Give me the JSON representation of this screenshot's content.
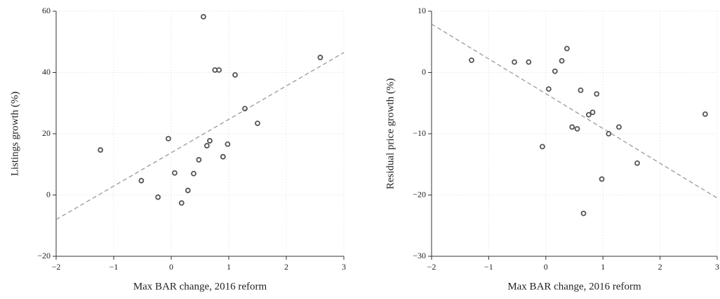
{
  "chart_data": [
    {
      "type": "scatter",
      "x_label": "Max BAR change, 2016 reform",
      "y_label": "Listings growth (%)",
      "x": [
        -1.23,
        -0.52,
        -0.23,
        -0.05,
        0.06,
        0.18,
        0.29,
        0.39,
        0.48,
        0.56,
        0.62,
        0.67,
        0.76,
        0.83,
        0.9,
        0.98,
        1.11,
        1.28,
        1.5,
        2.59
      ],
      "values": [
        14.7,
        4.7,
        -0.7,
        18.4,
        7.2,
        -2.6,
        1.5,
        7,
        11.5,
        58.2,
        16.1,
        17.7,
        40.8,
        40.8,
        12.5,
        16.6,
        39.2,
        28.2,
        23.4,
        44.9
      ],
      "color": "#555555",
      "fit_line": {
        "x": [
          -2,
          3
        ],
        "y": [
          -8,
          46.5
        ],
        "color": "#999999"
      },
      "xlim": [
        -2,
        3
      ],
      "xticks": [
        {
          "value": -2,
          "label": "−2"
        },
        {
          "value": -1,
          "label": "−1"
        },
        0,
        1,
        2,
        3
      ],
      "ylim": [
        -20,
        60
      ],
      "yticks": [
        {
          "value": -20,
          "label": "−20"
        },
        0,
        20,
        40,
        60
      ],
      "grid": true
    },
    {
      "type": "scatter",
      "x_label": "Max BAR change, 2016 reform",
      "y_label": "Residual price growth (%)",
      "x": [
        -1.3,
        -0.55,
        -0.3,
        -0.06,
        0.05,
        0.16,
        0.28,
        0.37,
        0.46,
        0.55,
        0.61,
        0.66,
        0.75,
        0.82,
        0.89,
        0.98,
        1.1,
        1.28,
        1.6,
        2.79
      ],
      "values": [
        2,
        1.7,
        1.7,
        -12.1,
        -2.7,
        0.2,
        1.9,
        3.9,
        -8.9,
        -9.2,
        -2.9,
        -23,
        -6.9,
        -6.5,
        -3.5,
        -17.4,
        -10,
        -8.9,
        -14.8,
        -6.8
      ],
      "color": "#555555",
      "fit_line": {
        "x": [
          -2,
          3
        ],
        "y": [
          7.9,
          -20.5
        ],
        "color": "#999999"
      },
      "xlim": [
        -2,
        3
      ],
      "xticks": [
        {
          "value": -2,
          "label": "−2"
        },
        {
          "value": -1,
          "label": "−1"
        },
        0,
        1,
        2,
        3
      ],
      "ylim": [
        -30,
        10
      ],
      "yticks": [
        {
          "value": -30,
          "label": "−30"
        },
        {
          "value": -20,
          "label": "−20"
        },
        {
          "value": -10,
          "label": "−10"
        },
        0,
        10
      ],
      "grid": true
    }
  ]
}
